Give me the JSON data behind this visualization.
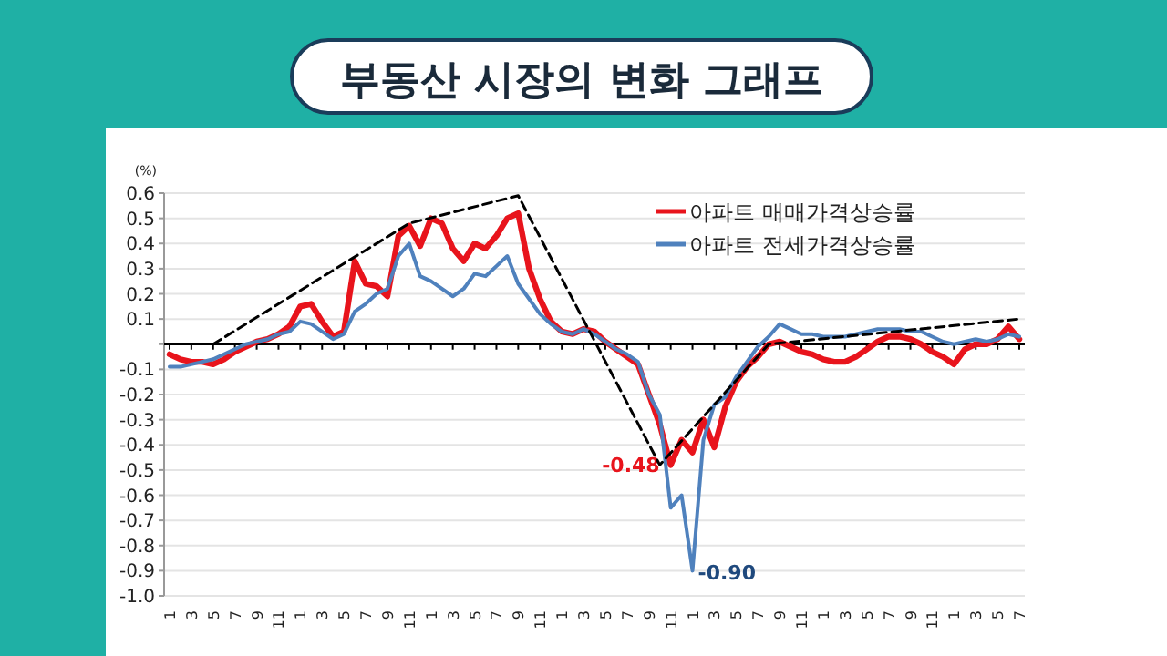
{
  "chart_data": {
    "type": "line",
    "title": "부동산 시장의 변화 그래프",
    "ylabel": "(%)",
    "legend": "top right",
    "grid": "y",
    "categories": [
      "1",
      null,
      "3",
      null,
      "5",
      null,
      "7",
      null,
      "9",
      null,
      "11",
      null,
      "1",
      null,
      "3",
      null,
      "5",
      null,
      "7",
      null,
      "9",
      null,
      "11",
      null,
      "1",
      null,
      "3",
      null,
      "5",
      null,
      "7",
      null,
      "9",
      null,
      "11",
      null,
      "1",
      null,
      "3",
      null,
      "5",
      null,
      "7",
      null,
      "9",
      null,
      "11",
      null,
      "1",
      null,
      "3",
      null,
      "5",
      null,
      "7",
      null,
      "9",
      null,
      "11",
      null,
      "1",
      null,
      "3",
      null,
      "5",
      null,
      "7",
      null,
      "9",
      null,
      "11",
      null,
      "1",
      null,
      "3",
      null,
      "5",
      null,
      "7"
    ],
    "ylim": [
      -1.0,
      0.6
    ],
    "yticks": [
      {
        "value": 0.6,
        "label": "0.6"
      },
      {
        "value": 0.5,
        "label": "0.5"
      },
      {
        "value": 0.4,
        "label": "0.4"
      },
      {
        "value": 0.3,
        "label": "0.3"
      },
      {
        "value": 0.2,
        "label": "0.2"
      },
      {
        "value": 0.1,
        "label": "0.1"
      },
      {
        "value": 0,
        "label": null
      },
      {
        "value": -0.1,
        "label": "-0.1"
      },
      {
        "value": -0.2,
        "label": "-0.2"
      },
      {
        "value": -0.3,
        "label": "-0.3"
      },
      {
        "value": -0.4,
        "label": "-0.4"
      },
      {
        "value": -0.5,
        "label": "-0.5"
      },
      {
        "value": -0.6,
        "label": "-0.6"
      },
      {
        "value": -0.7,
        "label": "-0.7"
      },
      {
        "value": -0.8,
        "label": "-0.8"
      },
      {
        "value": -0.9,
        "label": "-0.9"
      },
      {
        "value": -1.0,
        "label": "-1.0"
      }
    ],
    "ref_lines": [
      {
        "axis": "y",
        "value": 0,
        "label": null,
        "color": "#000000"
      }
    ],
    "series": [
      {
        "name": "아파트 매매가격상승률",
        "color": "#e8141c",
        "values": [
          -0.04,
          -0.06,
          -0.07,
          -0.07,
          -0.08,
          -0.06,
          -0.03,
          -0.01,
          0.01,
          0.02,
          0.04,
          0.07,
          0.15,
          0.16,
          0.09,
          0.03,
          0.05,
          0.33,
          0.24,
          0.23,
          0.19,
          0.43,
          0.47,
          0.39,
          0.5,
          0.48,
          0.38,
          0.33,
          0.4,
          0.38,
          0.43,
          0.5,
          0.52,
          0.3,
          0.18,
          0.09,
          0.05,
          0.04,
          0.06,
          0.05,
          0.01,
          -0.02,
          -0.05,
          -0.08,
          -0.2,
          -0.32,
          -0.48,
          -0.38,
          -0.43,
          -0.3,
          -0.41,
          -0.25,
          -0.15,
          -0.09,
          -0.05,
          0,
          0.01,
          -0.01,
          -0.03,
          -0.04,
          -0.06,
          -0.07,
          -0.07,
          -0.05,
          -0.02,
          0.01,
          0.03,
          0.03,
          0.02,
          0,
          -0.03,
          -0.05,
          -0.08,
          -0.02,
          0,
          0,
          0.02,
          0.07,
          0.02
        ],
        "value_labels": [
          null,
          null,
          null,
          null,
          null,
          null,
          null,
          null,
          null,
          null,
          null,
          null,
          null,
          null,
          null,
          null,
          null,
          null,
          null,
          null,
          null,
          null,
          null,
          null,
          null,
          null,
          null,
          null,
          null,
          null,
          null,
          null,
          null,
          null,
          null,
          null,
          null,
          null,
          null,
          null,
          null,
          null,
          null,
          null,
          null,
          null,
          "-0.48",
          null,
          null,
          null,
          null,
          null,
          null,
          null,
          null,
          null,
          null,
          null,
          null,
          null,
          null,
          null,
          null,
          null,
          null,
          null,
          null,
          null,
          null,
          null,
          null,
          null,
          null,
          null,
          null,
          null,
          null,
          null,
          null
        ]
      },
      {
        "name": "아파트 전세가격상승률",
        "color": "#4f81bd",
        "values": [
          -0.09,
          -0.09,
          -0.08,
          -0.07,
          -0.06,
          -0.04,
          -0.02,
          0,
          0.01,
          0.02,
          0.04,
          0.05,
          0.09,
          0.08,
          0.05,
          0.02,
          0.04,
          0.13,
          0.16,
          0.2,
          0.22,
          0.35,
          0.4,
          0.27,
          0.25,
          0.22,
          0.19,
          0.22,
          0.28,
          0.27,
          0.31,
          0.35,
          0.24,
          0.18,
          0.12,
          0.08,
          0.05,
          0.04,
          0.06,
          0.04,
          0.01,
          -0.02,
          -0.04,
          -0.07,
          -0.2,
          -0.28,
          -0.65,
          -0.6,
          -0.9,
          -0.38,
          -0.24,
          -0.21,
          -0.13,
          -0.07,
          -0.01,
          0.03,
          0.08,
          0.06,
          0.04,
          0.04,
          0.03,
          0.03,
          0.03,
          0.04,
          0.05,
          0.06,
          0.06,
          0.06,
          0.05,
          0.05,
          0.03,
          0.01,
          0,
          0.01,
          0.02,
          0.01,
          0.02,
          0.04,
          0.03
        ],
        "value_labels": [
          null,
          null,
          null,
          null,
          null,
          null,
          null,
          null,
          null,
          null,
          null,
          null,
          null,
          null,
          null,
          null,
          null,
          null,
          null,
          null,
          null,
          null,
          null,
          null,
          null,
          null,
          null,
          null,
          null,
          null,
          null,
          null,
          null,
          null,
          null,
          null,
          null,
          null,
          null,
          null,
          null,
          null,
          null,
          null,
          null,
          null,
          null,
          null,
          "-0.90",
          null,
          null,
          null,
          null,
          null,
          null,
          null,
          null,
          null,
          null,
          null,
          null,
          null,
          null,
          null,
          null,
          null,
          null,
          null,
          null,
          null,
          null,
          null,
          null,
          null,
          null,
          null,
          null,
          null,
          null
        ]
      },
      {
        "type": "line",
        "line_style": "dashed",
        "color": "#000000",
        "values": [
          null,
          null,
          null,
          null,
          0,
          null,
          null,
          null,
          null,
          null,
          null,
          null,
          null,
          null,
          null,
          null,
          null,
          null,
          null,
          null,
          null,
          null,
          0.48,
          null,
          null,
          null,
          null,
          null,
          null,
          null,
          null,
          null,
          0.59,
          null,
          null,
          null,
          null,
          null,
          null,
          null,
          null,
          null,
          null,
          null,
          null,
          -0.48,
          null,
          null,
          null,
          null,
          null,
          null,
          null,
          null,
          null,
          0,
          null,
          null,
          null,
          null,
          null,
          null,
          null,
          null,
          null,
          null,
          null,
          null,
          null,
          null,
          null,
          null,
          null,
          null,
          null,
          null,
          null,
          null,
          0.1
        ]
      }
    ]
  }
}
